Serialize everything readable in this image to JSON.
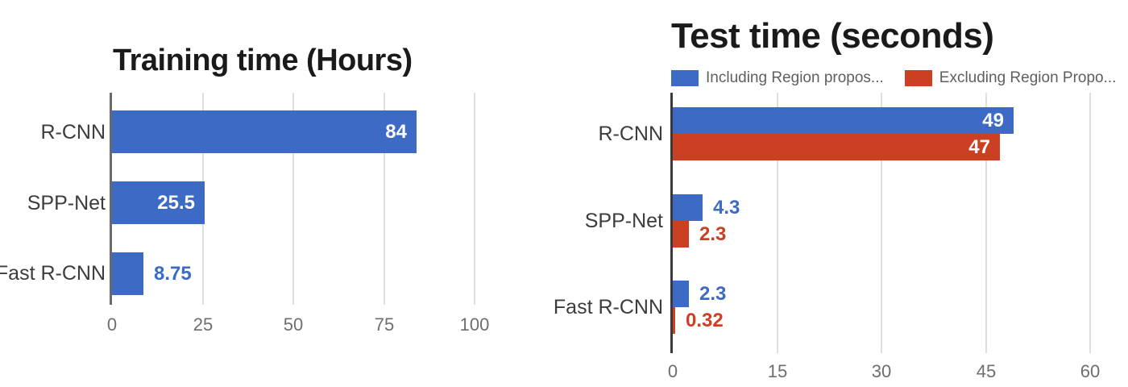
{
  "page": {
    "background": "#ffffff"
  },
  "colors": {
    "bar_blue": "#3d6ac5",
    "bar_red": "#cb4023",
    "gridline": "#dedede",
    "axis_left_chart": "#6a6a6a",
    "axis_right_chart": "#3a3a3a",
    "tick_text": "#6e6e6e",
    "category_text": "#3c3c3c",
    "legend_text": "#5f5f5f",
    "title_text": "#1a1a1a",
    "value_text_inside": "#ffffff"
  },
  "chart_data": [
    {
      "type": "bar",
      "orientation": "horizontal",
      "title": "Training time (Hours)",
      "categories": [
        "R-CNN",
        "SPP-Net",
        "Fast R-CNN"
      ],
      "series": [
        {
          "color": "#3d6ac5",
          "values": [
            84,
            25.5,
            8.75
          ]
        }
      ],
      "value_labels": [
        [
          "84"
        ],
        [
          "25.5"
        ],
        [
          "8.75"
        ]
      ],
      "xlim": [
        0,
        100
      ],
      "xticks": [
        0,
        25,
        50,
        75,
        100
      ],
      "grid": true,
      "legend_position": "none"
    },
    {
      "type": "bar",
      "orientation": "horizontal",
      "title": "Test time (seconds)",
      "categories": [
        "R-CNN",
        "SPP-Net",
        "Fast R-CNN"
      ],
      "series": [
        {
          "name": "Including Region propos...",
          "color": "#3d6ac5",
          "values": [
            49,
            4.3,
            2.3
          ]
        },
        {
          "name": "Excluding Region Propo...",
          "color": "#cb4023",
          "values": [
            47,
            2.3,
            0.32
          ]
        }
      ],
      "value_labels": [
        [
          "49",
          "47"
        ],
        [
          "4.3",
          "2.3"
        ],
        [
          "2.3",
          "0.32"
        ]
      ],
      "xlim": [
        0,
        60
      ],
      "xticks": [
        0,
        15,
        30,
        45,
        60
      ],
      "grid": true,
      "legend_position": "top"
    }
  ]
}
